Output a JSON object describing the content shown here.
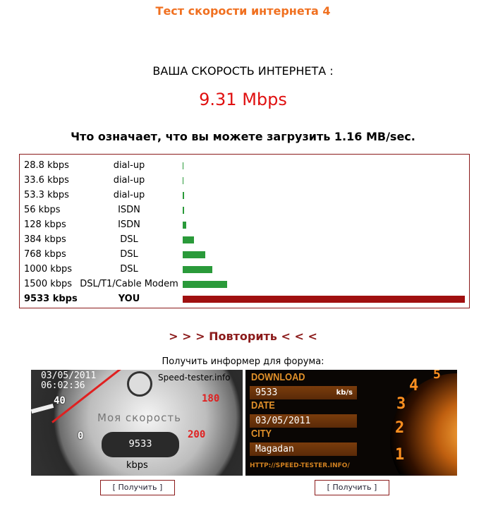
{
  "title": "Тест скорости интернета 4",
  "speed_label": "ВАША СКОРОСТЬ ИНТЕРНЕТА :",
  "speed_value": "9.31 Mbps",
  "meaning": "Что означает, что вы можете загрузить 1.16 MB/sec.",
  "comparison": [
    {
      "speed": "28.8 kbps",
      "type": "dial-up",
      "kbps": 28.8
    },
    {
      "speed": "33.6 kbps",
      "type": "dial-up",
      "kbps": 33.6
    },
    {
      "speed": "53.3 kbps",
      "type": "dial-up",
      "kbps": 53.3
    },
    {
      "speed": "56 kbps",
      "type": "ISDN",
      "kbps": 56
    },
    {
      "speed": "128 kbps",
      "type": "ISDN",
      "kbps": 128
    },
    {
      "speed": "384 kbps",
      "type": "DSL",
      "kbps": 384
    },
    {
      "speed": "768 kbps",
      "type": "DSL",
      "kbps": 768
    },
    {
      "speed": "1000 kbps",
      "type": "DSL",
      "kbps": 1000
    },
    {
      "speed": "1500 kbps",
      "type": "DSL/T1/Cable Modem",
      "kbps": 1500
    },
    {
      "speed": "9533 kbps",
      "type": "YOU",
      "kbps": 9533
    }
  ],
  "colors": {
    "reference_bar": "#2a9a3a",
    "your_bar": "#a01010",
    "title": "#f07020"
  },
  "repeat_link": "> > > Повторить < < <",
  "informer_label": "Получить информер для форума:",
  "informer1": {
    "date": "03/05/2011",
    "time": "06:02:36",
    "site": "Speed-tester.info",
    "caption": "Моя скорость",
    "value": "9533",
    "unit": "kbps",
    "ticks": [
      "40",
      "0",
      "180",
      "200"
    ]
  },
  "informer2": {
    "download_label": "DOWNLOAD",
    "value": "9533",
    "unit": "kb/s",
    "date_label": "DATE",
    "date": "03/05/2011",
    "city_label": "CITY",
    "city": "Magadan",
    "url": "HTTP://SPEED-TESTER.INFO/",
    "ticks": [
      "1",
      "2",
      "3",
      "4",
      "5"
    ]
  },
  "get_button": "[ Получить ]"
}
